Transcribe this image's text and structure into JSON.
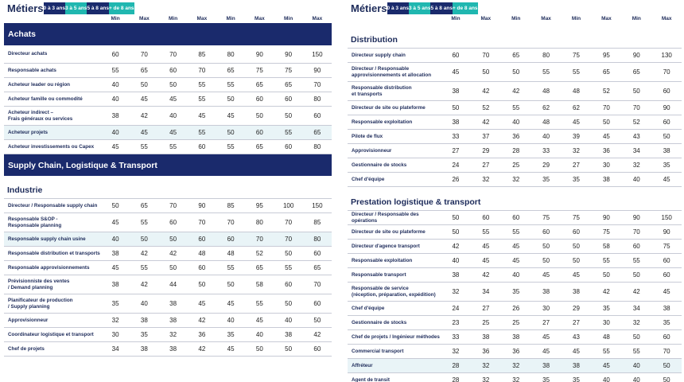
{
  "bands": [
    "0 à 3 ans",
    "3 à 5 ans",
    "5 à 8 ans",
    "+ de 8 ans"
  ],
  "min_label": "Min",
  "max_label": "Max",
  "left": {
    "title": "Métiers",
    "sections": [
      {
        "name": "Achats",
        "style": "dark",
        "rows": [
          {
            "label": "Directeur achats",
            "values": [
              "60",
              "70",
              "70",
              "85",
              "80",
              "90",
              "90",
              "150"
            ]
          },
          {
            "label": "Responsable achats",
            "values": [
              "55",
              "65",
              "60",
              "70",
              "65",
              "75",
              "75",
              "90"
            ]
          },
          {
            "label": "Acheteur leader ou région",
            "values": [
              "40",
              "50",
              "50",
              "55",
              "55",
              "65",
              "65",
              "70"
            ]
          },
          {
            "label": "Acheteur famille ou commodité",
            "values": [
              "40",
              "45",
              "45",
              "55",
              "50",
              "60",
              "60",
              "80"
            ]
          },
          {
            "label": "Acheteur indirect –\nFrais généraux ou services",
            "values": [
              "38",
              "42",
              "40",
              "45",
              "45",
              "50",
              "50",
              "60"
            ]
          },
          {
            "label": "Acheteur projets",
            "values": [
              "40",
              "45",
              "45",
              "55",
              "50",
              "60",
              "55",
              "65"
            ],
            "highlight": true
          },
          {
            "label": "Acheteur investissements ou Capex",
            "values": [
              "45",
              "55",
              "55",
              "60",
              "55",
              "65",
              "60",
              "80"
            ]
          }
        ]
      },
      {
        "name": "Supply Chain, Logistique & Transport",
        "style": "dark",
        "rows": []
      },
      {
        "name": "Industrie",
        "style": "white",
        "rows": [
          {
            "label": "Directeur / Responsable supply chain",
            "values": [
              "50",
              "65",
              "70",
              "90",
              "85",
              "95",
              "100",
              "150"
            ]
          },
          {
            "label": "Responsable S&OP -\nResponsable planning",
            "values": [
              "45",
              "55",
              "60",
              "70",
              "70",
              "80",
              "70",
              "85"
            ]
          },
          {
            "label": "Responsable supply chain usine",
            "values": [
              "40",
              "50",
              "50",
              "60",
              "60",
              "70",
              "70",
              "80"
            ],
            "highlight": true
          },
          {
            "label": "Responsable distribution et transports",
            "values": [
              "38",
              "42",
              "42",
              "48",
              "48",
              "52",
              "50",
              "60"
            ]
          },
          {
            "label": "Responsable approvisionnements",
            "values": [
              "45",
              "55",
              "50",
              "60",
              "55",
              "65",
              "55",
              "65"
            ]
          },
          {
            "label": "Prévisionniste des ventes\n/ Demand planning",
            "values": [
              "38",
              "42",
              "44",
              "50",
              "50",
              "58",
              "60",
              "70"
            ]
          },
          {
            "label": "Planificateur de production\n/ Supply planning",
            "values": [
              "35",
              "40",
              "38",
              "45",
              "45",
              "55",
              "50",
              "60"
            ]
          },
          {
            "label": "Approvisionneur",
            "values": [
              "32",
              "38",
              "38",
              "42",
              "40",
              "45",
              "40",
              "50"
            ]
          },
          {
            "label": "Coordinateur logistique et transport",
            "values": [
              "30",
              "35",
              "32",
              "36",
              "35",
              "40",
              "38",
              "42"
            ]
          },
          {
            "label": "Chef de projets",
            "values": [
              "34",
              "38",
              "38",
              "42",
              "45",
              "50",
              "50",
              "60"
            ]
          }
        ]
      }
    ]
  },
  "right": {
    "title": "Métiers",
    "sections": [
      {
        "name": "Distribution",
        "style": "white",
        "rows": [
          {
            "label": "Directeur supply chain",
            "values": [
              "60",
              "70",
              "65",
              "80",
              "75",
              "95",
              "90",
              "130"
            ]
          },
          {
            "label": "Directeur / Responsable\napprovisionnements et allocation",
            "values": [
              "45",
              "50",
              "50",
              "55",
              "55",
              "65",
              "65",
              "70"
            ]
          },
          {
            "label": "Responsable distribution\net transports",
            "values": [
              "38",
              "42",
              "42",
              "48",
              "48",
              "52",
              "50",
              "60"
            ]
          },
          {
            "label": "Directeur de site ou plateforme",
            "values": [
              "50",
              "52",
              "55",
              "62",
              "62",
              "70",
              "70",
              "90"
            ]
          },
          {
            "label": "Responsable exploitation",
            "values": [
              "38",
              "42",
              "40",
              "48",
              "45",
              "50",
              "52",
              "60"
            ]
          },
          {
            "label": "Pilote de flux",
            "values": [
              "33",
              "37",
              "36",
              "40",
              "39",
              "45",
              "43",
              "50"
            ]
          },
          {
            "label": "Approvisionneur",
            "values": [
              "27",
              "29",
              "28",
              "33",
              "32",
              "36",
              "34",
              "38"
            ]
          },
          {
            "label": "Gestionnaire de stocks",
            "values": [
              "24",
              "27",
              "25",
              "29",
              "27",
              "30",
              "32",
              "35"
            ]
          },
          {
            "label": "Chef d'équipe",
            "values": [
              "26",
              "32",
              "32",
              "35",
              "35",
              "38",
              "40",
              "45"
            ]
          }
        ]
      },
      {
        "name": "Prestation logistique & transport",
        "style": "white",
        "rows": [
          {
            "label": "Directeur / Responsable des opérations",
            "values": [
              "50",
              "60",
              "60",
              "75",
              "75",
              "90",
              "90",
              "150"
            ]
          },
          {
            "label": "Directeur de site ou plateforme",
            "values": [
              "50",
              "55",
              "55",
              "60",
              "60",
              "75",
              "70",
              "90"
            ]
          },
          {
            "label": "Directeur d'agence transport",
            "values": [
              "42",
              "45",
              "45",
              "50",
              "50",
              "58",
              "60",
              "75"
            ]
          },
          {
            "label": "Responsable exploitation",
            "values": [
              "40",
              "45",
              "45",
              "50",
              "50",
              "55",
              "55",
              "60"
            ]
          },
          {
            "label": "Responsable transport",
            "values": [
              "38",
              "42",
              "40",
              "45",
              "45",
              "50",
              "50",
              "60"
            ]
          },
          {
            "label": "Responsable de service\n(réception, préparation, expédition)",
            "values": [
              "32",
              "34",
              "35",
              "38",
              "38",
              "42",
              "42",
              "45"
            ]
          },
          {
            "label": "Chef d'équipe",
            "values": [
              "24",
              "27",
              "26",
              "30",
              "29",
              "35",
              "34",
              "38"
            ]
          },
          {
            "label": "Gestionnaire de stocks",
            "values": [
              "23",
              "25",
              "25",
              "27",
              "27",
              "30",
              "32",
              "35"
            ]
          },
          {
            "label": "Chef de projets / Ingénieur méthodes",
            "values": [
              "33",
              "38",
              "38",
              "45",
              "43",
              "48",
              "50",
              "60"
            ]
          },
          {
            "label": "Commercial transport",
            "values": [
              "32",
              "36",
              "36",
              "45",
              "45",
              "55",
              "55",
              "70"
            ]
          },
          {
            "label": "Affréteur",
            "values": [
              "28",
              "32",
              "32",
              "38",
              "38",
              "45",
              "40",
              "50"
            ],
            "highlight": true
          },
          {
            "label": "Agent de transit",
            "values": [
              "28",
              "32",
              "32",
              "35",
              "35",
              "40",
              "40",
              "50"
            ]
          }
        ]
      }
    ]
  },
  "colors": {
    "navy": "#1a2a6c",
    "teal": "#20b7b0",
    "highlight": "#e9f4f7",
    "text": "#1d2b5a"
  }
}
